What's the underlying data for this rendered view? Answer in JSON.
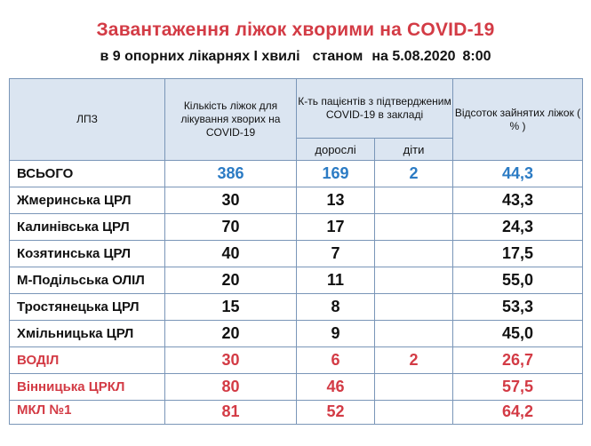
{
  "header": {
    "title": "Завантаження ліжок хворими на COVID-19",
    "subtitle_part1": "в 9 опорних лікарнях І хвилі",
    "subtitle_part2": "станом",
    "subtitle_part3": "на 5.08.2020",
    "subtitle_part4": "8:00"
  },
  "table": {
    "col_lpz": "ЛПЗ",
    "col_beds": "Кількість ліжок для лікування хворих на  COVID-19",
    "col_patients": "К-ть пацієнтів з підтвердженим COVID-19 в закладі",
    "col_adults": "дорослі",
    "col_children": "діти",
    "col_percent": "Відсоток зайнятих ліжок ( % )",
    "rows": [
      {
        "name": "ВСЬОГО",
        "beds": "386",
        "adults": "169",
        "children": "2",
        "percent": "44,3"
      },
      {
        "name": "Жмеринська ЦРЛ",
        "beds": "30",
        "adults": "13",
        "children": "",
        "percent": "43,3"
      },
      {
        "name": "Калинівська ЦРЛ",
        "beds": "70",
        "adults": "17",
        "children": "",
        "percent": "24,3"
      },
      {
        "name": "Козятинська ЦРЛ",
        "beds": "40",
        "adults": "7",
        "children": "",
        "percent": "17,5"
      },
      {
        "name": "М-Подільська ОЛІЛ",
        "beds": "20",
        "adults": "11",
        "children": "",
        "percent": "55,0"
      },
      {
        "name": "Тростянецька ЦРЛ",
        "beds": "15",
        "adults": "8",
        "children": "",
        "percent": "53,3"
      },
      {
        "name": "Хмільницька ЦРЛ",
        "beds": "20",
        "adults": "9",
        "children": "",
        "percent": "45,0"
      },
      {
        "name": "ВОДІЛ",
        "beds": "30",
        "adults": "6",
        "children": "2",
        "percent": "26,7"
      },
      {
        "name": "Вінницька ЦРКЛ",
        "beds": "80",
        "adults": "46",
        "children": "",
        "percent": "57,5"
      },
      {
        "name": "МКЛ №1",
        "beds": "81",
        "adults": "52",
        "children": "",
        "percent": "64,2"
      }
    ]
  },
  "colors": {
    "title_red": "#d33b45",
    "total_blue": "#2b7bc4",
    "header_fill": "#dbe5f1",
    "border": "#7a96b8"
  }
}
